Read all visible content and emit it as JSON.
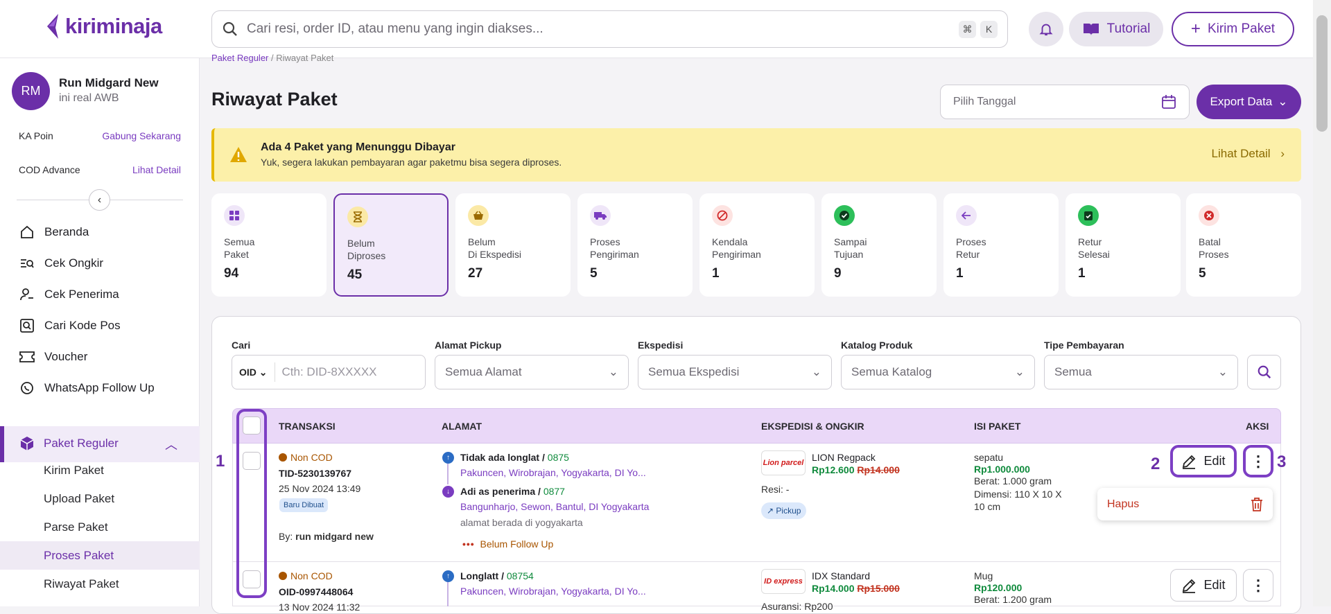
{
  "header": {
    "logo": "kiriminaja",
    "search_placeholder": "Cari resi, order ID, atau menu yang ingin diakses...",
    "kbd1": "⌘",
    "kbd2": "K",
    "tutorial": "Tutorial",
    "kirim": "Kirim Paket"
  },
  "user": {
    "initials": "RM",
    "name": "Run Midgard New",
    "sub": "ini real AWB"
  },
  "sidebar": {
    "ka_poin": "KA Poin",
    "ka_poin_link": "Gabung Sekarang",
    "cod": "COD Advance",
    "cod_link": "Lihat Detail",
    "nav": [
      "Beranda",
      "Cek Ongkir",
      "Cek Penerima",
      "Cari Kode Pos",
      "Voucher",
      "WhatsApp Follow Up"
    ],
    "reguler": "Paket Reguler",
    "sub": [
      "Kirim Paket",
      "Upload Paket",
      "Parse Paket",
      "Proses Paket",
      "Riwayat Paket"
    ]
  },
  "breadcrumb": {
    "a": "Paket Reguler",
    "sep": "/",
    "b": "Riwayat Paket"
  },
  "page": {
    "title": "Riwayat Paket",
    "date_placeholder": "Pilih Tanggal",
    "export": "Export Data"
  },
  "alert": {
    "title": "Ada 4 Paket yang Menunggu Dibayar",
    "text": "Yuk, segera lakukan pembayaran agar paketmu bisa segera diproses.",
    "link": "Lihat Detail"
  },
  "cards": [
    {
      "l1": "Semua",
      "l2": "Paket",
      "v": "94"
    },
    {
      "l1": "Belum",
      "l2": "Diproses",
      "v": "45"
    },
    {
      "l1": "Belum",
      "l2": "Di Ekspedisi",
      "v": "27"
    },
    {
      "l1": "Proses",
      "l2": "Pengiriman",
      "v": "5"
    },
    {
      "l1": "Kendala",
      "l2": "Pengiriman",
      "v": "1"
    },
    {
      "l1": "Sampai",
      "l2": "Tujuan",
      "v": "9"
    },
    {
      "l1": "Proses",
      "l2": "Retur",
      "v": "1"
    },
    {
      "l1": "Retur",
      "l2": "Selesai",
      "v": "1"
    },
    {
      "l1": "Batal",
      "l2": "Proses",
      "v": "5"
    }
  ],
  "filters": {
    "cari": "Cari",
    "oid": "OID",
    "cari_ph": "Cth: DID-8XXXXX",
    "alamat": "Alamat Pickup",
    "alamat_v": "Semua Alamat",
    "eksp": "Ekspedisi",
    "eksp_v": "Semua Ekspedisi",
    "katalog": "Katalog Produk",
    "katalog_v": "Semua Katalog",
    "tipe": "Tipe Pembayaran",
    "tipe_v": "Semua"
  },
  "table": {
    "h_trans": "TRANSAKSI",
    "h_alamat": "ALAMAT",
    "h_eksp": "EKSPEDISI & ONGKIR",
    "h_isi": "ISI PAKET",
    "h_aksi": "AKSI"
  },
  "rows": [
    {
      "cod": "Non COD",
      "id": "TID-5230139767",
      "date": "25 Nov 2024 13:49",
      "badge": "Baru Dibuat",
      "by_label": "By:",
      "by": "run midgard new",
      "from": "Tidak ada longlat",
      "from_sep": "/",
      "from_num": "0875",
      "from_addr": "Pakuncen, Wirobrajan, Yogyakarta, DI Yo...",
      "to": "Adi as penerima",
      "to_sep": "/",
      "to_num": "0877",
      "to_addr": "Bangunharjo, Sewon, Bantul, DI Yogyakarta",
      "to_note": "alamat berada di yogyakarta",
      "follow": "Belum Follow Up",
      "courier_logo": "Lion parcel",
      "courier": "LION Regpack",
      "price": "Rp12.600",
      "old": "Rp14.000",
      "resi": "Resi: -",
      "pickup": "Pickup",
      "item": "sepatu",
      "item_price": "Rp1.000.000",
      "berat": "Berat: 1.000 gram",
      "dimensi1": "Dimensi: 110 X 10 X",
      "dimensi2": "10 cm"
    },
    {
      "cod": "Non COD",
      "id": "OID-0997448064",
      "date": "13 Nov 2024 11:32",
      "from": "Longlatt",
      "from_sep": "/",
      "from_num": "08754",
      "from_addr": "Pakuncen, Wirobrajan, Yogyakarta, DI Yo...",
      "courier_logo": "ID express",
      "courier": "IDX Standard",
      "price": "Rp14.000",
      "old": "Rp15.000",
      "resi": "Asuransi: Rp200",
      "item": "Mug",
      "item_price": "Rp120.000",
      "berat": "Berat: 1.200 gram"
    }
  ],
  "actions": {
    "edit": "Edit",
    "more": "⋮",
    "hapus": "Hapus"
  },
  "annotations": {
    "n1": "1",
    "n2": "2",
    "n3": "3"
  }
}
